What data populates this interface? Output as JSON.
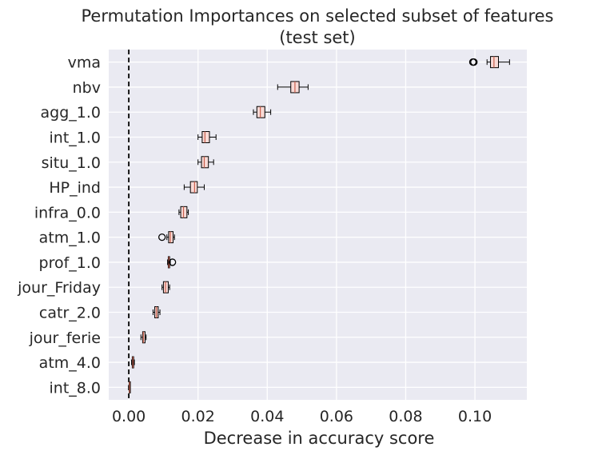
{
  "chart_data": {
    "type": "boxplot",
    "orientation": "horizontal",
    "title_lines": [
      "Permutation Importances on selected subset of features",
      "(test set)"
    ],
    "xlabel": "Decrease in accuracy score",
    "ylabel": "",
    "xlim": [
      -0.0058,
      0.115
    ],
    "xticks": [
      0.0,
      0.02,
      0.04,
      0.06,
      0.08,
      0.1
    ],
    "xtick_labels": [
      "0.00",
      "0.02",
      "0.04",
      "0.06",
      "0.08",
      "0.10"
    ],
    "grid": true,
    "reference_line": {
      "x": 0.0,
      "style": "dashed",
      "color": "#000000"
    },
    "colors": {
      "background": "#eaeaf2",
      "grid": "#ffffff",
      "box_fill": "#f8dad6",
      "median": "#c8604e",
      "edge": "#000000"
    },
    "features": [
      {
        "label": "vma",
        "whisker_low": 0.1035,
        "q1": 0.1045,
        "median": 0.1055,
        "q3": 0.1068,
        "whisker_high": 0.11,
        "outliers": [
          0.0994,
          0.0997
        ]
      },
      {
        "label": "nbv",
        "whisker_low": 0.043,
        "q1": 0.0468,
        "median": 0.048,
        "q3": 0.0492,
        "whisker_high": 0.0518,
        "outliers": []
      },
      {
        "label": "agg_1.0",
        "whisker_low": 0.036,
        "q1": 0.037,
        "median": 0.038,
        "q3": 0.0393,
        "whisker_high": 0.041,
        "outliers": []
      },
      {
        "label": "int_1.0",
        "whisker_low": 0.02,
        "q1": 0.0212,
        "median": 0.022,
        "q3": 0.0233,
        "whisker_high": 0.0252,
        "outliers": []
      },
      {
        "label": "situ_1.0",
        "whisker_low": 0.02,
        "q1": 0.021,
        "median": 0.0218,
        "q3": 0.023,
        "whisker_high": 0.0245,
        "outliers": []
      },
      {
        "label": "HP_ind",
        "whisker_low": 0.016,
        "q1": 0.0178,
        "median": 0.019,
        "q3": 0.0198,
        "whisker_high": 0.0218,
        "outliers": []
      },
      {
        "label": "infra_0.0",
        "whisker_low": 0.0145,
        "q1": 0.015,
        "median": 0.0158,
        "q3": 0.0168,
        "whisker_high": 0.0172,
        "outliers": []
      },
      {
        "label": "atm_1.0",
        "whisker_low": 0.011,
        "q1": 0.0115,
        "median": 0.012,
        "q3": 0.0128,
        "whisker_high": 0.0132,
        "outliers": [
          0.0096
        ]
      },
      {
        "label": "prof_1.0",
        "whisker_low": 0.0112,
        "q1": 0.0114,
        "median": 0.0116,
        "q3": 0.0118,
        "whisker_high": 0.012,
        "outliers": [
          0.0126
        ]
      },
      {
        "label": "jour_Friday",
        "whisker_low": 0.0096,
        "q1": 0.01,
        "median": 0.0106,
        "q3": 0.0114,
        "whisker_high": 0.0118,
        "outliers": []
      },
      {
        "label": "catr_2.0",
        "whisker_low": 0.007,
        "q1": 0.0075,
        "median": 0.008,
        "q3": 0.0085,
        "whisker_high": 0.009,
        "outliers": []
      },
      {
        "label": "jour_ferie",
        "whisker_low": 0.0035,
        "q1": 0.004,
        "median": 0.0042,
        "q3": 0.0047,
        "whisker_high": 0.005,
        "outliers": []
      },
      {
        "label": "atm_4.0",
        "whisker_low": 0.0008,
        "q1": 0.001,
        "median": 0.0012,
        "q3": 0.0014,
        "whisker_high": 0.0016,
        "outliers": []
      },
      {
        "label": "int_8.0",
        "whisker_low": 0.0,
        "q1": 0.0001,
        "median": 0.0002,
        "q3": 0.0003,
        "whisker_high": 0.0004,
        "outliers": []
      }
    ]
  }
}
